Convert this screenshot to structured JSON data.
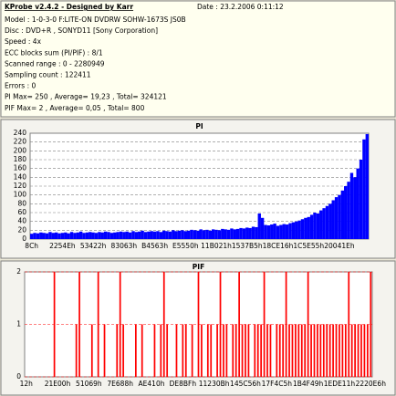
{
  "header": {
    "title": "KProbe v2.4.2 - Designed by Karr",
    "date": "Date : 23.2.2006 0:11:12",
    "info_lines": [
      "Model : 1-0-3-0 F:LITE-ON DVDRW SOHW-1673S JS0B",
      "Disc : DVD+R , SONYD11 [Sony Corporation]",
      "Speed : 4x",
      "ECC blocks sum (PI/PIF) : 8/1",
      "Scanned range : 0 - 2280949",
      "Sampling count : 122411",
      "Errors : 0",
      "PI Max= 250 , Average= 19,23 , Total= 324121",
      "PIF Max= 2 , Average= 0,05 , Total= 800"
    ]
  },
  "chart_data": [
    {
      "type": "bar",
      "title": "PI",
      "color": "#0000ff",
      "grid": true,
      "ylim": [
        0,
        240
      ],
      "yticks": [
        0,
        20,
        40,
        60,
        80,
        100,
        120,
        140,
        160,
        180,
        200,
        220,
        240
      ],
      "categories": [
        "8Ch",
        null,
        null,
        null,
        null,
        null,
        null,
        null,
        null,
        null,
        "2254Eh",
        null,
        null,
        null,
        null,
        null,
        null,
        null,
        null,
        null,
        "53422h",
        null,
        null,
        null,
        null,
        null,
        null,
        null,
        null,
        null,
        "83063h",
        null,
        null,
        null,
        null,
        null,
        null,
        null,
        null,
        null,
        "B4563h",
        null,
        null,
        null,
        null,
        null,
        null,
        null,
        null,
        null,
        "E5550h",
        null,
        null,
        null,
        null,
        null,
        null,
        null,
        null,
        null,
        "11B021h",
        null,
        null,
        null,
        null,
        null,
        null,
        null,
        null,
        null,
        "1537B5h",
        null,
        null,
        null,
        null,
        null,
        null,
        null,
        null,
        null,
        "18CE16h",
        null,
        null,
        null,
        null,
        null,
        null,
        null,
        null,
        null,
        "1C5E55h",
        null,
        null,
        null,
        null,
        null,
        null,
        null,
        null,
        null,
        "20041Eh",
        null,
        null,
        null,
        null,
        null,
        null,
        null,
        null,
        null
      ],
      "values": [
        12,
        14,
        13,
        15,
        14,
        13,
        16,
        14,
        15,
        13,
        14,
        15,
        13,
        16,
        14,
        15,
        17,
        14,
        15,
        16,
        15,
        14,
        16,
        15,
        17,
        16,
        14,
        15,
        16,
        17,
        16,
        17,
        15,
        18,
        16,
        17,
        19,
        16,
        17,
        18,
        17,
        18,
        16,
        19,
        18,
        17,
        20,
        18,
        19,
        20,
        18,
        19,
        21,
        20,
        19,
        22,
        20,
        21,
        19,
        22,
        21,
        20,
        23,
        22,
        21,
        24,
        22,
        23,
        25,
        24,
        26,
        25,
        28,
        27,
        58,
        48,
        32,
        31,
        33,
        35,
        30,
        32,
        34,
        33,
        36,
        38,
        40,
        42,
        45,
        48,
        50,
        55,
        60,
        58,
        65,
        70,
        75,
        80,
        88,
        95,
        100,
        110,
        120,
        130,
        150,
        140,
        160,
        180,
        226,
        238
      ]
    },
    {
      "type": "bar",
      "title": "PIF",
      "color": "#ff0000",
      "grid": true,
      "ylim": [
        0,
        2
      ],
      "yticks": [
        0,
        1,
        2
      ],
      "categories": [
        "12h",
        null,
        null,
        null,
        null,
        null,
        null,
        null,
        null,
        null,
        "21E00h",
        null,
        null,
        null,
        null,
        null,
        null,
        null,
        null,
        null,
        "51069h",
        null,
        null,
        null,
        null,
        null,
        null,
        null,
        null,
        null,
        "7E688h",
        null,
        null,
        null,
        null,
        null,
        null,
        null,
        null,
        null,
        "AE410h",
        null,
        null,
        null,
        null,
        null,
        null,
        null,
        null,
        null,
        "DE8BFh",
        null,
        null,
        null,
        null,
        null,
        null,
        null,
        null,
        null,
        "11230Bh",
        null,
        null,
        null,
        null,
        null,
        null,
        null,
        null,
        null,
        "145C56h",
        null,
        null,
        null,
        null,
        null,
        null,
        null,
        null,
        null,
        "17F4C5h",
        null,
        null,
        null,
        null,
        null,
        null,
        null,
        null,
        null,
        "1B4F49h",
        null,
        null,
        null,
        null,
        null,
        null,
        null,
        null,
        null,
        "1EDE11h",
        null,
        null,
        null,
        null,
        null,
        null,
        null,
        null,
        null,
        "2220E6h"
      ],
      "values": [
        0,
        0,
        0,
        0,
        0,
        0,
        0,
        0,
        0,
        2,
        0,
        0,
        0,
        0,
        0,
        0,
        1,
        2,
        0,
        0,
        0,
        1,
        0,
        2,
        0,
        1,
        0,
        0,
        0,
        1,
        2,
        1,
        0,
        0,
        0,
        1,
        0,
        1,
        0,
        0,
        0,
        1,
        0,
        1,
        2,
        1,
        0,
        0,
        1,
        0,
        1,
        1,
        0,
        1,
        0,
        2,
        1,
        0,
        1,
        1,
        0,
        1,
        2,
        1,
        1,
        0,
        1,
        1,
        2,
        1,
        1,
        1,
        0,
        1,
        1,
        1,
        2,
        1,
        1,
        0,
        1,
        1,
        1,
        2,
        1,
        1,
        1,
        1,
        1,
        1,
        2,
        1,
        1,
        1,
        1,
        1,
        1,
        1,
        1,
        1,
        1,
        1,
        1,
        2,
        1,
        1,
        1,
        1,
        1,
        1,
        2
      ]
    }
  ]
}
